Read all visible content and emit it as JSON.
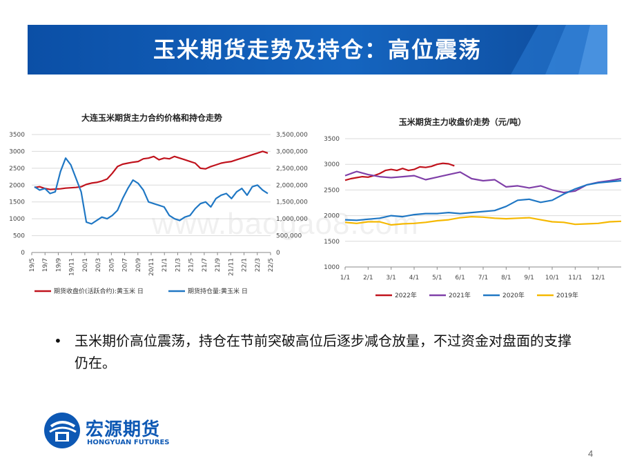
{
  "slide": {
    "title": "玉米期货走势及持仓：高位震荡",
    "bullet": "玉米期价高位震荡，持仓在节前突破高位后逐步减仓放量，不过资金对盘面的支撑仍在。",
    "page_number": "4",
    "watermark": "www.baogao8.com",
    "logo": {
      "cn": "宏源期货",
      "en": "HONGYUAN FUTURES"
    },
    "colors": {
      "banner": "#1565c0",
      "text": "#111111"
    }
  },
  "chart_data": [
    {
      "type": "line",
      "title": "大连玉米期货主力合约价格和持仓走势",
      "x_ticks": [
        "19/5",
        "19/7",
        "19/9",
        "19/11",
        "20/1",
        "20/3",
        "20/5",
        "20/7",
        "20/9",
        "20/11",
        "21/1",
        "21/3",
        "21/5",
        "21/7",
        "21/9",
        "21/11",
        "22/1",
        "22/3",
        "22/5"
      ],
      "ylim": [
        0,
        3500
      ],
      "y_ticks": [
        "0",
        "500",
        "1000",
        "1500",
        "2000",
        "2500",
        "3000",
        "3500"
      ],
      "y2lim": [
        0,
        3500000
      ],
      "y2_ticks": [
        "0",
        "500,000",
        "1,000,000",
        "1,500,000",
        "2,000,000",
        "2,500,000",
        "3,000,000",
        "3,500,000"
      ],
      "series": [
        {
          "name": "期货收盘价(活跃合约):黄玉米 日",
          "axis": "left",
          "color": "#c0121c",
          "values": [
            1930,
            1950,
            1900,
            1870,
            1880,
            1890,
            1910,
            1920,
            1930,
            1950,
            2020,
            2060,
            2080,
            2120,
            2180,
            2350,
            2550,
            2620,
            2650,
            2680,
            2700,
            2780,
            2800,
            2850,
            2750,
            2800,
            2780,
            2850,
            2800,
            2750,
            2700,
            2650,
            2500,
            2480,
            2550,
            2600,
            2650,
            2680,
            2700,
            2750,
            2800,
            2850,
            2900,
            2950,
            3000,
            2950
          ]
        },
        {
          "name": "期货持仓量:黄玉米 日",
          "axis": "right",
          "color": "#1f77c4",
          "values": [
            1950000,
            1850000,
            1900000,
            1750000,
            1800000,
            2400000,
            2800000,
            2600000,
            2200000,
            1800000,
            900000,
            850000,
            950000,
            1050000,
            1000000,
            1100000,
            1250000,
            1600000,
            1900000,
            2150000,
            2050000,
            1850000,
            1500000,
            1450000,
            1400000,
            1350000,
            1100000,
            1000000,
            950000,
            1050000,
            1100000,
            1300000,
            1450000,
            1500000,
            1350000,
            1600000,
            1700000,
            1750000,
            1600000,
            1800000,
            1900000,
            1700000,
            1950000,
            2000000,
            1850000,
            1750000
          ]
        }
      ],
      "legend": "bottom"
    },
    {
      "type": "line",
      "title": "玉米期货主力收盘价走势（元/吨）",
      "x_ticks": [
        "1/1",
        "2/1",
        "3/1",
        "4/1",
        "5/1",
        "6/1",
        "7/1",
        "8/1",
        "9/1",
        "10/1",
        "11/1",
        "12/1"
      ],
      "ylim": [
        1000,
        3500
      ],
      "y_ticks": [
        "1000",
        "1500",
        "2000",
        "2500",
        "3000",
        "3500"
      ],
      "series": [
        {
          "name": "2022年",
          "color": "#c0121c",
          "x": [
            0,
            0.25,
            0.5,
            0.75,
            1,
            1.25,
            1.5,
            1.75,
            2,
            2.25,
            2.5,
            2.75,
            3,
            3.25,
            3.5,
            3.75,
            4,
            4.25,
            4.5,
            4.75
          ],
          "values": [
            2690,
            2720,
            2740,
            2760,
            2750,
            2780,
            2820,
            2880,
            2900,
            2880,
            2920,
            2880,
            2900,
            2950,
            2940,
            2960,
            3000,
            3020,
            3010,
            2970
          ]
        },
        {
          "name": "2021年",
          "color": "#7f3fa8",
          "x": [
            0,
            0.5,
            1,
            1.5,
            2,
            2.5,
            3,
            3.5,
            4,
            4.5,
            5,
            5.5,
            6,
            6.5,
            7,
            7.5,
            8,
            8.5,
            9,
            9.5,
            10,
            10.5,
            11,
            11.5,
            12
          ],
          "values": [
            2780,
            2860,
            2800,
            2760,
            2740,
            2760,
            2780,
            2700,
            2750,
            2800,
            2850,
            2720,
            2680,
            2700,
            2560,
            2580,
            2540,
            2580,
            2500,
            2450,
            2480,
            2600,
            2650,
            2680,
            2720
          ]
        },
        {
          "name": "2020年",
          "color": "#1f77c4",
          "x": [
            0,
            0.5,
            1,
            1.5,
            2,
            2.5,
            3,
            3.5,
            4,
            4.5,
            5,
            5.5,
            6,
            6.5,
            7,
            7.5,
            8,
            8.5,
            9,
            9.5,
            10,
            10.5,
            11,
            11.5,
            12
          ],
          "values": [
            1920,
            1910,
            1930,
            1950,
            2000,
            1980,
            2020,
            2040,
            2040,
            2060,
            2040,
            2060,
            2080,
            2100,
            2180,
            2300,
            2320,
            2260,
            2300,
            2420,
            2520,
            2600,
            2640,
            2660,
            2680
          ]
        },
        {
          "name": "2019年",
          "color": "#f5b800",
          "x": [
            0,
            0.5,
            1,
            1.5,
            2,
            2.5,
            3,
            3.5,
            4,
            4.5,
            5,
            5.5,
            6,
            6.5,
            7,
            7.5,
            8,
            8.5,
            9,
            9.5,
            10,
            10.5,
            11,
            11.5,
            12
          ],
          "values": [
            1870,
            1850,
            1880,
            1880,
            1820,
            1840,
            1850,
            1870,
            1900,
            1920,
            1960,
            1980,
            1970,
            1950,
            1940,
            1950,
            1960,
            1920,
            1880,
            1870,
            1830,
            1840,
            1850,
            1880,
            1890
          ]
        }
      ],
      "legend": "bottom"
    }
  ]
}
